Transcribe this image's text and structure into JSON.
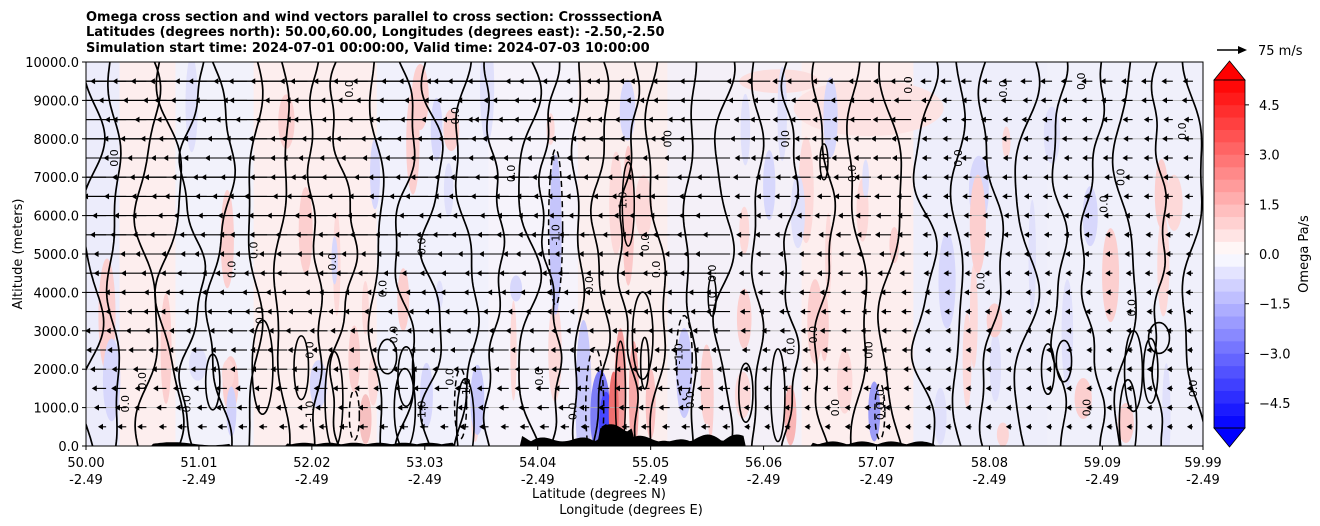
{
  "chart_data": {
    "type": "contour_cross_section",
    "title_lines": [
      "Omega cross section and wind vectors parallel to cross section: CrosssectionA",
      "Latitudes (degrees north): 50.00,60.00, Longitudes (degrees east): -2.50,-2.50",
      "Simulation start time: 2024-07-01 00:00:00, Valid time: 2024-07-03 10:00:00"
    ],
    "xlabel_lat": "Latitude (degrees N)",
    "xlabel_lon": "Longitude (degrees E)",
    "ylabel": "Altitude (meters)",
    "xlim": [
      50.0,
      59.99
    ],
    "ylim": [
      0,
      10000
    ],
    "x_ticks": [
      {
        "lat_value": 50.0,
        "lat": "50.00",
        "lon": "-2.49"
      },
      {
        "lat_value": 51.01,
        "lat": "51.01",
        "lon": "-2.49"
      },
      {
        "lat_value": 52.02,
        "lat": "52.02",
        "lon": "-2.49"
      },
      {
        "lat_value": 53.03,
        "lat": "53.03",
        "lon": "-2.49"
      },
      {
        "lat_value": 54.04,
        "lat": "54.04",
        "lon": "-2.49"
      },
      {
        "lat_value": 55.05,
        "lat": "55.05",
        "lon": "-2.49"
      },
      {
        "lat_value": 56.06,
        "lat": "56.06",
        "lon": "-2.49"
      },
      {
        "lat_value": 57.07,
        "lat": "57.07",
        "lon": "-2.49"
      },
      {
        "lat_value": 58.08,
        "lat": "58.08",
        "lon": "-2.49"
      },
      {
        "lat_value": 59.09,
        "lat": "59.09",
        "lon": "-2.49"
      },
      {
        "lat_value": 59.99,
        "lat": "59.99",
        "lon": "-2.49"
      }
    ],
    "y_ticks": [
      {
        "value": 0,
        "label": "0.0"
      },
      {
        "value": 1000,
        "label": "1000.0"
      },
      {
        "value": 2000,
        "label": "2000.0"
      },
      {
        "value": 3000,
        "label": "3000.0"
      },
      {
        "value": 4000,
        "label": "4000.0"
      },
      {
        "value": 5000,
        "label": "5000.0"
      },
      {
        "value": 6000,
        "label": "6000.0"
      },
      {
        "value": 7000,
        "label": "7000.0"
      },
      {
        "value": 8000,
        "label": "8000.0"
      },
      {
        "value": 9000,
        "label": "9000.0"
      },
      {
        "value": 10000,
        "label": "10000.0"
      }
    ],
    "grid": true,
    "colorbar": {
      "label": "Omega Pa/s",
      "range": [
        -5.25,
        5.25
      ],
      "step": 0.375,
      "ticks": [
        {
          "value": 4.5,
          "label": "4.5"
        },
        {
          "value": 3.0,
          "label": "3.0"
        },
        {
          "value": 1.5,
          "label": "1.5"
        },
        {
          "value": 0.0,
          "label": "0.0"
        },
        {
          "value": -1.5,
          "label": "−1.5"
        },
        {
          "value": -3.0,
          "label": "−3.0"
        },
        {
          "value": -4.5,
          "label": "−4.5"
        }
      ],
      "extend": "both",
      "high_color": "#ff0000",
      "low_color": "#0000ff"
    },
    "reference_arrow": {
      "label": "75 m/s",
      "speed": 75
    },
    "contour_levels": [
      {
        "value": 0.0,
        "label": "0.0",
        "style": "solid"
      },
      {
        "value": -1.0,
        "label": "-1.0",
        "style": "dashed"
      },
      {
        "value": 1.0,
        "label": "1.0",
        "style": "solid"
      }
    ],
    "profiles_lat": [
      50.05,
      50.25,
      50.55,
      50.75,
      50.95,
      51.2,
      51.5,
      51.75,
      52.05,
      52.3,
      52.6,
      52.85,
      53.1,
      53.4,
      53.65,
      53.95,
      54.15,
      54.4,
      54.6,
      54.85,
      55.1,
      55.4,
      55.7,
      56.0,
      56.3,
      56.6,
      56.9,
      57.2,
      57.5,
      57.8,
      58.1,
      58.4,
      58.7,
      59.0,
      59.3,
      59.6,
      59.9
    ],
    "zero_contour_labels": [
      {
        "lat": 50.25,
        "alt": 7500
      },
      {
        "lat": 50.35,
        "alt": 1100
      },
      {
        "lat": 50.5,
        "alt": 1700
      },
      {
        "lat": 50.9,
        "alt": 1100
      },
      {
        "lat": 51.3,
        "alt": 4600
      },
      {
        "lat": 51.5,
        "alt": 5100
      },
      {
        "lat": 51.55,
        "alt": 3400
      },
      {
        "lat": 52.0,
        "alt": 2500
      },
      {
        "lat": 52.2,
        "alt": 4800
      },
      {
        "lat": 52.35,
        "alt": 9300
      },
      {
        "lat": 52.65,
        "alt": 4100
      },
      {
        "lat": 52.75,
        "alt": 2900
      },
      {
        "lat": 53.0,
        "alt": 5200
      },
      {
        "lat": 53.25,
        "alt": 1800
      },
      {
        "lat": 53.3,
        "alt": 8600
      },
      {
        "lat": 53.8,
        "alt": 7100
      },
      {
        "lat": 54.05,
        "alt": 1800
      },
      {
        "lat": 54.35,
        "alt": 900
      },
      {
        "lat": 54.5,
        "alt": 4200
      },
      {
        "lat": 55.0,
        "alt": 5300
      },
      {
        "lat": 55.1,
        "alt": 4600
      },
      {
        "lat": 55.2,
        "alt": 8000
      },
      {
        "lat": 55.4,
        "alt": 1200
      },
      {
        "lat": 55.6,
        "alt": 4500
      },
      {
        "lat": 56.25,
        "alt": 8000
      },
      {
        "lat": 56.3,
        "alt": 2600
      },
      {
        "lat": 56.5,
        "alt": 2900
      },
      {
        "lat": 56.7,
        "alt": 1000
      },
      {
        "lat": 56.85,
        "alt": 7100
      },
      {
        "lat": 57.0,
        "alt": 2500
      },
      {
        "lat": 57.1,
        "alt": 900
      },
      {
        "lat": 57.35,
        "alt": 9400
      },
      {
        "lat": 57.8,
        "alt": 7500
      },
      {
        "lat": 58.0,
        "alt": 4300
      },
      {
        "lat": 58.2,
        "alt": 9300
      },
      {
        "lat": 58.9,
        "alt": 9500
      },
      {
        "lat": 58.95,
        "alt": 1000
      },
      {
        "lat": 59.1,
        "alt": 6300
      },
      {
        "lat": 59.25,
        "alt": 7000
      },
      {
        "lat": 59.35,
        "alt": 3600
      },
      {
        "lat": 59.8,
        "alt": 8200
      },
      {
        "lat": 59.9,
        "alt": 1500
      }
    ],
    "minus_one_contour_labels": [
      {
        "lat": 52.0,
        "alt": 900
      },
      {
        "lat": 53.0,
        "alt": 900
      },
      {
        "lat": 53.4,
        "alt": 1500
      },
      {
        "lat": 54.2,
        "alt": 5500
      },
      {
        "lat": 55.3,
        "alt": 2400
      },
      {
        "lat": 57.1,
        "alt": 1200
      }
    ],
    "one_contour_labels": [
      {
        "lat": 54.8,
        "alt": 6400
      },
      {
        "lat": 55.6,
        "alt": 3800
      },
      {
        "lat": 56.6,
        "alt": 7400
      }
    ]
  }
}
